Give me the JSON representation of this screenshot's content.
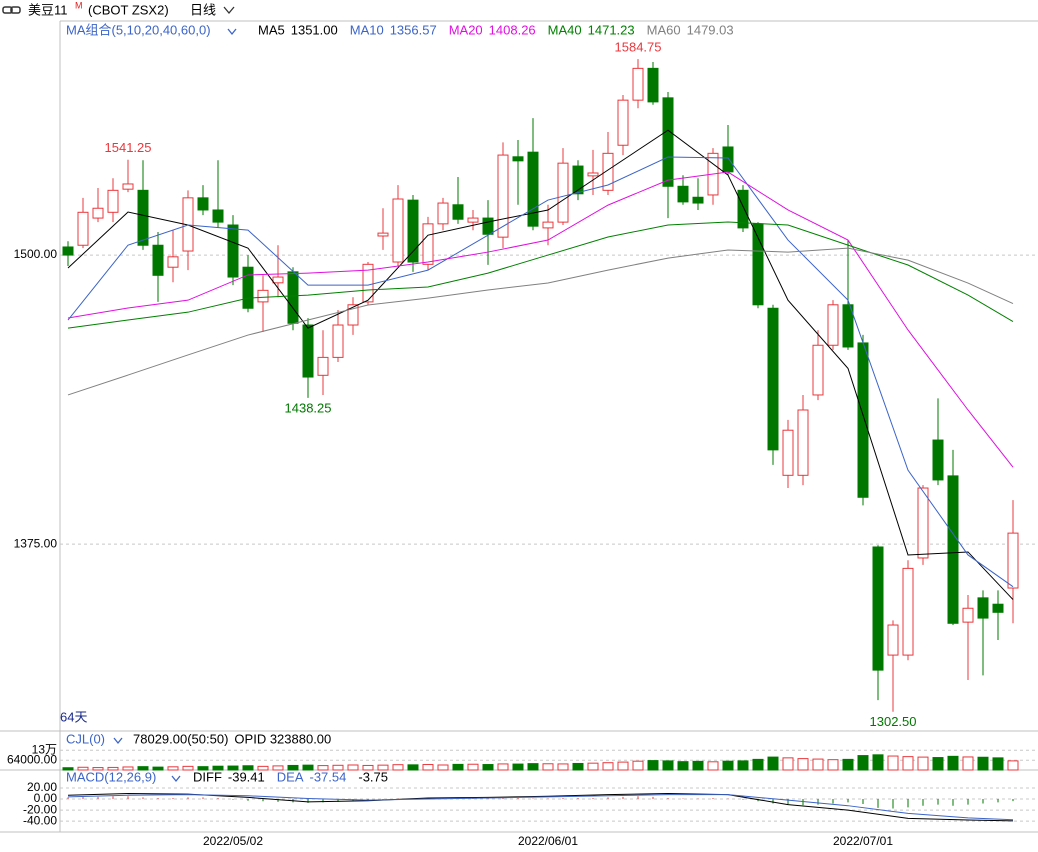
{
  "toolbar": {
    "symbol": "美豆11",
    "flag": "M",
    "contract": "(CBOT ZSX2)",
    "period": "日线"
  },
  "chart_data": [
    {
      "type": "candlestick",
      "title": "MA组合(5,10,20,40,60,0)",
      "range_label": "64天",
      "categories": [
        null,
        null,
        null,
        null,
        null,
        null,
        null,
        null,
        null,
        null,
        null,
        "2022/05/02",
        null,
        null,
        null,
        null,
        null,
        null,
        null,
        null,
        null,
        null,
        null,
        null,
        null,
        null,
        null,
        null,
        null,
        null,
        null,
        null,
        "2022/06/01",
        null,
        null,
        null,
        null,
        null,
        null,
        null,
        null,
        null,
        null,
        null,
        null,
        null,
        null,
        null,
        null,
        null,
        null,
        null,
        null,
        "2022/07/01",
        null,
        null,
        null,
        null,
        null,
        null,
        null,
        null,
        null,
        null
      ],
      "open": [
        1503.5,
        1504.25,
        1516,
        1518.5,
        1528.5,
        1528,
        1504.25,
        1494.75,
        1501.75,
        1524.75,
        1519.5,
        1513,
        1494.75,
        1479.75,
        1488,
        1492.75,
        1469.75,
        1448,
        1455.75,
        1469.75,
        1479.75,
        1508.25,
        1497,
        1523.75,
        1496,
        1513.5,
        1521.75,
        1514.25,
        1516,
        1507.75,
        1542.5,
        1544.5,
        1511.75,
        1514.25,
        1538.5,
        1534.25,
        1528,
        1547.5,
        1567,
        1580.75,
        1568,
        1529.75,
        1525,
        1526,
        1546.75,
        1528,
        1513.5,
        1477,
        1404.75,
        1404.75,
        1439.5,
        1461,
        1478.5,
        1462,
        1373.75,
        1327,
        1327,
        1369,
        1420,
        1404.5,
        1341.25,
        1351.75,
        1349,
        1356
      ],
      "high": [
        1506,
        1524.75,
        1529,
        1533.25,
        1541.25,
        1541,
        1510,
        1510.75,
        1528,
        1530.25,
        1541,
        1517.25,
        1500,
        1491.25,
        1504.25,
        1494.75,
        1472.75,
        1467.5,
        1476.25,
        1481.75,
        1497,
        1520.25,
        1530.25,
        1526,
        1516.5,
        1524.75,
        1533.75,
        1519.5,
        1523.75,
        1548.75,
        1549.75,
        1559.25,
        1521.75,
        1546.25,
        1541,
        1545.5,
        1553.25,
        1569.25,
        1584.75,
        1583.5,
        1570.5,
        1534.5,
        1533.25,
        1546.25,
        1556.25,
        1530.25,
        1514.25,
        1478.5,
        1428.75,
        1439.5,
        1467.5,
        1480.5,
        1506.5,
        1465.5,
        1374.5,
        1342,
        1368,
        1400.5,
        1438,
        1415.75,
        1353,
        1355,
        1355,
        1394
      ],
      "low": [
        1495.25,
        1503,
        1514.25,
        1514.25,
        1527.25,
        1502.25,
        1479.75,
        1488.25,
        1493.5,
        1517.25,
        1512,
        1487,
        1475.25,
        1466.75,
        1481.75,
        1467.5,
        1438.25,
        1439.5,
        1453.75,
        1465.5,
        1478.5,
        1502.25,
        1495.25,
        1492.75,
        1493.5,
        1510.75,
        1513.5,
        1510.75,
        1495.75,
        1503,
        1521.75,
        1510.75,
        1504.25,
        1513,
        1523.75,
        1526,
        1526,
        1543.25,
        1563.5,
        1565,
        1516,
        1521.75,
        1519.5,
        1521.75,
        1534.5,
        1510,
        1477,
        1409.25,
        1399.25,
        1400.5,
        1437.25,
        1459,
        1459,
        1391.75,
        1307.5,
        1302.5,
        1324.75,
        1366,
        1400.5,
        1340,
        1316.25,
        1318.25,
        1333.5,
        1340.75
      ],
      "close": [
        1500,
        1518.5,
        1520.25,
        1528,
        1530.75,
        1504.25,
        1491.25,
        1499.25,
        1524.75,
        1519.5,
        1514.25,
        1490.5,
        1477,
        1484.75,
        1490.5,
        1470.5,
        1447.25,
        1455.75,
        1469.75,
        1478.5,
        1496,
        1509.5,
        1524.25,
        1497,
        1513.5,
        1522.5,
        1515.5,
        1516,
        1509,
        1543.25,
        1540.75,
        1512.5,
        1514.25,
        1539.75,
        1526.5,
        1535.5,
        1544,
        1567,
        1580.75,
        1566.25,
        1529.75,
        1523,
        1522.5,
        1544,
        1536,
        1511.75,
        1478.5,
        1415.75,
        1424.25,
        1433,
        1461,
        1478.5,
        1460.25,
        1395.25,
        1320.5,
        1340,
        1364.5,
        1399.25,
        1402.75,
        1340.75,
        1347.25,
        1343,
        1345.5,
        1379.75
      ],
      "up_color": "#e8383d",
      "down_color": "#007800",
      "series": [
        {
          "name": "MA5",
          "color": "#000000",
          "x": [
            0,
            4,
            8,
            12,
            16,
            20,
            24,
            28,
            32,
            36,
            40,
            44,
            48,
            52,
            56,
            60,
            63
          ],
          "values": [
            1494.4,
            1518.6,
            1513,
            1503,
            1468.4,
            1480.5,
            1508.6,
            1514.3,
            1519.5,
            1536.8,
            1554,
            1534.6,
            1480.5,
            1451,
            1370.3,
            1371.6,
            1351
          ],
          "value_labels": [
            null,
            null,
            null,
            null,
            null,
            null,
            null,
            null,
            null,
            null,
            null,
            null,
            null,
            null,
            null,
            null,
            "1351.00"
          ]
        },
        {
          "name": "MA10",
          "color": "#3c64c8",
          "x": [
            0,
            4,
            8,
            12,
            16,
            20,
            24,
            28,
            32,
            36,
            40,
            44,
            48,
            52,
            56,
            60,
            63
          ],
          "values": [
            1471.9,
            1504.3,
            1513,
            1510.8,
            1487,
            1487,
            1493.5,
            1508.6,
            1523.8,
            1530.3,
            1542.4,
            1542,
            1506.5,
            1480.5,
            1407,
            1370.3,
            1356.57
          ]
        },
        {
          "name": "MA20",
          "color": "#e010e0",
          "x": [
            0,
            4,
            8,
            12,
            16,
            20,
            24,
            28,
            32,
            36,
            40,
            44,
            48,
            52,
            56,
            60,
            63
          ],
          "values": [
            1472.8,
            1477.1,
            1480.5,
            1491.4,
            1492.2,
            1493.5,
            1497,
            1501.3,
            1506.5,
            1521.6,
            1532.4,
            1535.9,
            1519.5,
            1506.5,
            1467.6,
            1433,
            1408.26
          ]
        },
        {
          "name": "MA40",
          "color": "#008000",
          "x": [
            0,
            4,
            8,
            12,
            16,
            20,
            24,
            28,
            32,
            36,
            40,
            44,
            48,
            52,
            56,
            60,
            63
          ],
          "values": [
            1468.4,
            1471.9,
            1475.3,
            1481.4,
            1482.7,
            1484.9,
            1486.2,
            1492.2,
            1500,
            1507.8,
            1513,
            1514.3,
            1513,
            1504.3,
            1495.7,
            1482.7,
            1471.23
          ]
        },
        {
          "name": "MA60",
          "color": "#808080",
          "x": [
            0,
            4,
            8,
            12,
            16,
            20,
            24,
            28,
            32,
            36,
            40,
            44,
            48,
            52,
            56,
            60,
            63
          ],
          "values": [
            1439.5,
            1448.1,
            1456.8,
            1465.4,
            1471.9,
            1478.4,
            1481.4,
            1484.9,
            1487.9,
            1493.5,
            1498.7,
            1502.2,
            1501.3,
            1503,
            1497.8,
            1487.9,
            1479.03
          ]
        }
      ],
      "annotations": [
        {
          "value": 1541.25,
          "label": "1541.25"
        },
        {
          "value": 1584.75,
          "label": "1584.75"
        },
        {
          "value": 1438.25,
          "label": "1438.25"
        },
        {
          "value": 1302.5,
          "label": "1302.50"
        }
      ],
      "ylim": [
        1294.6,
        1600.8
      ],
      "yticks": [
        {
          "value": 1500,
          "label": "1500.00"
        },
        {
          "value": 1375,
          "label": "1375.00"
        }
      ],
      "grid": true
    },
    {
      "type": "bar",
      "title": "CJL(0)",
      "info": [
        "78029.00(50:50)",
        "OPID 323880.00"
      ],
      "values": [
        15000,
        18000,
        16000,
        17000,
        20000,
        22000,
        19000,
        21000,
        24000,
        22000,
        25000,
        26000,
        28000,
        24000,
        27000,
        30000,
        32000,
        29000,
        31000,
        33000,
        30000,
        32000,
        35000,
        34000,
        36000,
        33000,
        37000,
        38000,
        36000,
        40000,
        39000,
        42000,
        41000,
        40000,
        43000,
        45000,
        48000,
        52000,
        58000,
        62000,
        60000,
        55000,
        57000,
        54000,
        58000,
        60000,
        70000,
        85000,
        80000,
        75000,
        72000,
        68000,
        70000,
        95000,
        100000,
        92000,
        88000,
        85000,
        82000,
        90000,
        86000,
        84000,
        80000,
        60000
      ],
      "ylim": [
        0,
        145000
      ],
      "yticks": [
        {
          "value": 130000,
          "label": "13万"
        },
        {
          "value": 64000,
          "label": "64000.00"
        }
      ],
      "grid": true
    },
    {
      "type": "line",
      "title": "MACD(12,26,9)",
      "series": [
        {
          "name": "DIFF",
          "color": "#000000",
          "x": [
            0,
            4,
            8,
            12,
            16,
            20,
            24,
            28,
            32,
            36,
            40,
            44,
            48,
            52,
            56,
            60,
            63
          ],
          "values": [
            7,
            10,
            9,
            3,
            -5,
            -3,
            2,
            3,
            5,
            8,
            10,
            8,
            -10,
            -20,
            -35,
            -38,
            -39.41
          ]
        },
        {
          "name": "DEA",
          "color": "#3c64c8",
          "x": [
            0,
            4,
            8,
            12,
            16,
            20,
            24,
            28,
            32,
            36,
            40,
            44,
            48,
            52,
            56,
            60,
            63
          ],
          "values": [
            4,
            7,
            8,
            6,
            1,
            -2,
            0,
            2,
            4,
            6,
            8,
            8,
            -2,
            -12,
            -26,
            -34,
            -37.54
          ]
        }
      ],
      "bars": {
        "values": [
          3,
          4,
          4,
          5,
          5,
          3,
          2,
          2,
          3,
          3,
          2,
          -1,
          -3,
          -4,
          -5,
          -6,
          -7,
          -6,
          -5,
          -4,
          -3,
          -1,
          1,
          1,
          1,
          2,
          1,
          1,
          0.5,
          2,
          2,
          1,
          1,
          2,
          2,
          2,
          3,
          4,
          5,
          4,
          2,
          1,
          1,
          2,
          1,
          -1,
          -4,
          -8,
          -10,
          -11,
          -10,
          -8,
          -6,
          -9,
          -16,
          -17,
          -15,
          -12,
          -10,
          -12,
          -10,
          -8,
          -6,
          -3.75
        ]
      },
      "up_color": "#e8383d",
      "down_color": "#007800",
      "ylim": [
        -56,
        34.5
      ],
      "yticks": [
        {
          "value": 20,
          "label": "20.00"
        },
        {
          "value": 0,
          "label": "0.00"
        },
        {
          "value": -20,
          "label": "-20.00"
        },
        {
          "value": -40,
          "label": "-40.00"
        }
      ],
      "grid": true
    }
  ]
}
